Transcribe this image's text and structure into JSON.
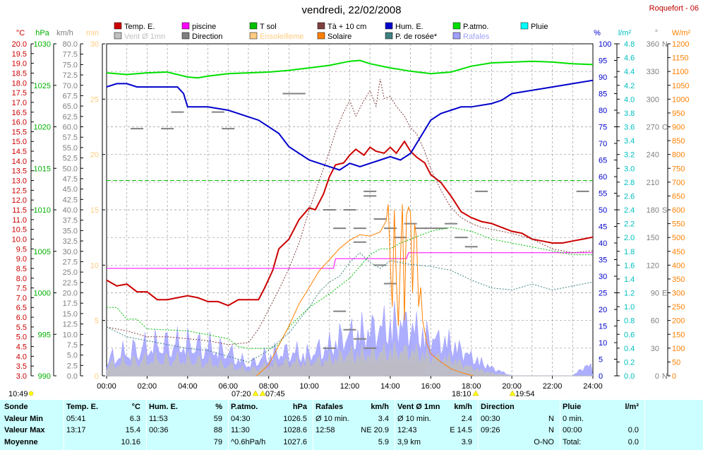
{
  "title": "vendredi, 22/02/2008",
  "station": "Roquefort - 06",
  "legend": [
    {
      "label": "Temp. E.",
      "color": "#cc0000",
      "swatch": "fill",
      "col": 0,
      "row": 0
    },
    {
      "label": "Vent Ø 1mn",
      "color": "#c0c0c0",
      "swatch": "fill",
      "col": 0,
      "row": 1
    },
    {
      "label": "piscine",
      "color": "#ff00ff",
      "swatch": "fill",
      "col": 1,
      "row": 0
    },
    {
      "label": "Direction",
      "color": "#808080",
      "swatch": "fill",
      "col": 1,
      "row": 1
    },
    {
      "label": "T sol",
      "color": "#00c000",
      "swatch": "fill",
      "col": 2,
      "row": 0
    },
    {
      "label": "Ensoleilleme",
      "color": "#ffcc80",
      "swatch": "fill",
      "col": 2,
      "row": 1
    },
    {
      "label": "Tà + 10 cm",
      "color": "#804040",
      "swatch": "fill",
      "col": 3,
      "row": 0
    },
    {
      "label": "Solaire",
      "color": "#ff8000",
      "swatch": "fill",
      "col": 3,
      "row": 1
    },
    {
      "label": "Hum. E.",
      "color": "#0000cc",
      "swatch": "fill",
      "col": 4,
      "row": 0
    },
    {
      "label": "P. de rosée*",
      "color": "#408080",
      "swatch": "fill",
      "col": 4,
      "row": 1
    },
    {
      "label": "P.atmo.",
      "color": "#00e000",
      "swatch": "fill",
      "col": 5,
      "row": 0
    },
    {
      "label": "Rafales",
      "color": "#a0a0ff",
      "swatch": "fill",
      "col": 5,
      "row": 1
    },
    {
      "label": "Pluie",
      "color": "#00ffff",
      "swatch": "fill",
      "col": 6,
      "row": 0
    }
  ],
  "axes": {
    "temp": {
      "unit": "°C",
      "color": "#cc0000",
      "min": 3.0,
      "max": 20.0,
      "step": 0.5,
      "labelEvery": 2,
      "decimals": 1
    },
    "press": {
      "unit": "hPa",
      "color": "#00b000",
      "min": 990,
      "max": 1030,
      "step": 5,
      "decimals": 0
    },
    "wind": {
      "unit": "km/h",
      "color": "#808080",
      "min": 0.0,
      "max": 80.0,
      "step": 2.5,
      "decimals": 1
    },
    "minutes": {
      "unit": "min",
      "color": "#ffcc80",
      "min": 0,
      "max": 30,
      "step": 5,
      "decimals": 0
    },
    "hum": {
      "unit": "%",
      "color": "#0000cc",
      "min": 0,
      "max": 100,
      "step": 5,
      "decimals": 0
    },
    "rain": {
      "unit": "l/m²",
      "color": "#00c0c0",
      "min": 0.0,
      "max": 4.8,
      "step": 0.2,
      "decimals": 1
    },
    "dir": {
      "unit": "°",
      "color": "#808080",
      "ticks": [
        {
          "v": 0,
          "t": "0"
        },
        {
          "v": 30,
          "t": "30"
        },
        {
          "v": 60,
          "t": "60"
        },
        {
          "v": 90,
          "t": "90"
        },
        {
          "v": 120,
          "t": "120"
        },
        {
          "v": 150,
          "t": "150"
        },
        {
          "v": 180,
          "t": "180"
        },
        {
          "v": 210,
          "t": "210"
        },
        {
          "v": 240,
          "t": "240"
        },
        {
          "v": 270,
          "t": "270"
        },
        {
          "v": 300,
          "t": "300"
        },
        {
          "v": 330,
          "t": "330"
        },
        {
          "v": 360,
          "t": "360"
        }
      ],
      "letters": [
        {
          "v": 0,
          "t": "N"
        },
        {
          "v": 90,
          "t": "E"
        },
        {
          "v": 180,
          "t": "S"
        },
        {
          "v": 270,
          "t": "O"
        },
        {
          "v": 360,
          "t": "N"
        }
      ],
      "min": 0,
      "max": 360
    },
    "solar": {
      "unit": "W/m²",
      "color": "#ff8000",
      "min": 0,
      "max": 1200,
      "step": 50,
      "decimals": 0
    },
    "xticks": [
      "00:00",
      "02:00",
      "04:00",
      "06:00",
      "08:00",
      "10:00",
      "12:00",
      "14:00",
      "16:00",
      "18:00",
      "20:00",
      "22:00",
      "24:00"
    ]
  },
  "sun": {
    "moonrise": "10:49",
    "sunrise": "07:20",
    "sunrise2": "07:45",
    "sunset": "18:10",
    "sunset2": "19:54"
  },
  "chart_data": {
    "type": "line",
    "x_unit": "hours",
    "series": [
      {
        "name": "Temp. E.",
        "axis": "temp",
        "color": "#cc0000",
        "width": 2,
        "x": [
          0,
          0.5,
          1,
          1.5,
          2,
          2.5,
          3,
          3.5,
          4,
          4.5,
          5,
          5.5,
          6,
          6.5,
          7,
          7.5,
          7.8,
          8.2,
          8.5,
          9,
          9.5,
          10,
          10.3,
          10.7,
          11,
          11.3,
          11.7,
          12,
          12.3,
          12.7,
          13,
          13.3,
          13.7,
          14,
          14.3,
          14.7,
          15,
          15.3,
          15.7,
          16,
          16.5,
          17,
          17.5,
          18,
          18.5,
          19,
          19.5,
          20,
          20.5,
          21,
          21.5,
          22,
          22.5,
          23,
          23.5,
          24
        ],
        "y": [
          7.9,
          7.6,
          7.7,
          7.3,
          7.3,
          6.9,
          6.9,
          7.0,
          7.1,
          7.0,
          6.8,
          6.8,
          6.6,
          6.9,
          6.9,
          6.9,
          7.5,
          8.4,
          9.5,
          10.0,
          11.0,
          11.6,
          11.5,
          12.3,
          13.2,
          13.8,
          13.9,
          14.3,
          14.6,
          14.3,
          14.7,
          14.5,
          14.4,
          14.7,
          14.4,
          15.0,
          14.5,
          14.2,
          13.9,
          13.3,
          12.9,
          12.2,
          11.4,
          11.1,
          10.9,
          10.8,
          10.6,
          10.4,
          10.3,
          10.0,
          9.9,
          9.8,
          9.8,
          9.9,
          10.0,
          10.1
        ]
      },
      {
        "name": "piscine",
        "axis": "temp",
        "color": "#ff00ff",
        "width": 1,
        "x": [
          0,
          11.2,
          11.3,
          14.8,
          14.9,
          24
        ],
        "y": [
          8.5,
          8.5,
          9.0,
          9.0,
          9.3,
          9.3
        ]
      },
      {
        "name": "T sol",
        "axis": "temp",
        "color": "#00c000",
        "width": 1,
        "dash": "2,2",
        "x": [
          0,
          0.5,
          1,
          1.5,
          2,
          4,
          5,
          6,
          6.5,
          7,
          8,
          8.5,
          9,
          10,
          11,
          11.5,
          12,
          12.5,
          13,
          13.5,
          14,
          14.5,
          15,
          15.5,
          16,
          16.5,
          17,
          17.5,
          18,
          18.5,
          19,
          20,
          21,
          22,
          23,
          24
        ],
        "y": [
          6.5,
          6.5,
          5.9,
          5.9,
          5.4,
          5.3,
          5.1,
          4.9,
          4.5,
          4.4,
          4.4,
          4.6,
          5.5,
          6.5,
          7.2,
          7.6,
          8.0,
          8.6,
          9.2,
          9.5,
          9.5,
          9.8,
          10.0,
          10.2,
          10.4,
          10.5,
          10.6,
          10.5,
          10.4,
          10.2,
          10.0,
          9.8,
          9.6,
          9.4,
          9.2,
          9.2
        ]
      },
      {
        "name": "Tà + 10 cm",
        "axis": "temp",
        "color": "#804040",
        "width": 1,
        "dash": "2,2",
        "x": [
          0,
          1,
          2,
          3,
          4,
          5,
          6,
          7,
          7.5,
          8,
          8.5,
          9,
          9.5,
          10,
          10.5,
          11,
          11.3,
          11.7,
          12,
          12.3,
          12.7,
          13,
          13.3,
          13.5,
          13.7,
          14,
          14.3,
          14.7,
          15,
          15.3,
          15.7,
          16,
          16.5,
          17,
          17.5,
          18,
          18.5,
          19,
          20,
          21,
          22,
          23,
          24
        ],
        "y": [
          5.5,
          5.3,
          5.0,
          5.0,
          4.9,
          4.8,
          4.6,
          4.7,
          5.4,
          6.4,
          7.4,
          8.5,
          9.8,
          11.5,
          13.0,
          14.5,
          15.5,
          16.5,
          17.1,
          16.3,
          17.1,
          17.6,
          16.8,
          18.2,
          17.2,
          17.3,
          16.8,
          16.3,
          15.7,
          15.4,
          14.5,
          13.6,
          12.5,
          11.6,
          11.1,
          10.8,
          10.6,
          10.5,
          10.3,
          10.0,
          9.5,
          9.3,
          9.4
        ]
      },
      {
        "name": "P.atmo.",
        "axis": "press",
        "color": "#00e000",
        "width": 2,
        "x": [
          0,
          1,
          2,
          3,
          4,
          4.5,
          5,
          6,
          7,
          8,
          9,
          10,
          11,
          12,
          12.5,
          13,
          14,
          15,
          16,
          17,
          18,
          19,
          20,
          21,
          22,
          23,
          24
        ],
        "y": [
          1026.5,
          1026.3,
          1026.5,
          1026.6,
          1026.0,
          1025.9,
          1026.1,
          1026.4,
          1026.5,
          1026.6,
          1026.8,
          1027.1,
          1027.4,
          1027.9,
          1028.0,
          1027.6,
          1027.1,
          1026.7,
          1026.4,
          1026.6,
          1027.3,
          1027.7,
          1027.8,
          1027.9,
          1027.8,
          1027.6,
          1027.5
        ]
      },
      {
        "name": "Hum. E.",
        "axis": "hum",
        "color": "#0000cc",
        "width": 2,
        "x": [
          0,
          0.5,
          1,
          1.5,
          2,
          2.5,
          3,
          3.5,
          3.8,
          4,
          5,
          6,
          6.5,
          7,
          7.5,
          8,
          8.5,
          9,
          9.5,
          10,
          10.5,
          11,
          11.5,
          12,
          12.5,
          13,
          13.5,
          14,
          14.5,
          15,
          15.5,
          16,
          16.5,
          17,
          17.5,
          18,
          19,
          19.5,
          20,
          21,
          22,
          23,
          24
        ],
        "y": [
          87,
          88,
          88,
          87,
          87,
          87,
          87,
          87,
          85,
          81,
          81,
          80,
          79,
          78,
          77,
          75,
          73,
          69,
          67,
          65,
          64,
          63,
          62,
          64,
          63,
          64,
          65,
          66,
          65,
          67,
          72,
          77,
          79,
          80,
          81,
          81,
          82,
          83,
          85,
          86,
          87,
          88,
          89
        ]
      },
      {
        "name": "Solaire",
        "axis": "solar",
        "color": "#ff8000",
        "width": 1,
        "x": [
          7.4,
          8,
          8.5,
          9,
          9.5,
          10,
          10.5,
          11,
          11.5,
          12,
          12.5,
          13,
          13.5,
          13.8,
          13.9,
          14,
          14.1,
          14.2,
          14.3,
          14.4,
          14.5,
          14.6,
          14.7,
          14.8,
          14.9,
          15,
          15.1,
          15.2,
          15.3,
          15.4,
          15.5,
          15.6,
          15.8,
          16,
          16.5,
          17,
          17.5,
          18.1
        ],
        "y": [
          0,
          40,
          110,
          180,
          260,
          320,
          380,
          420,
          460,
          490,
          510,
          505,
          520,
          560,
          620,
          410,
          250,
          600,
          350,
          180,
          420,
          620,
          200,
          580,
          610,
          590,
          300,
          550,
          500,
          250,
          320,
          200,
          120,
          80,
          50,
          25,
          12,
          0
        ]
      },
      {
        "name": "P. de rosée*",
        "axis": "temp",
        "color": "#408080",
        "width": 1,
        "dash": "2,2",
        "x": [
          0,
          1,
          2,
          3,
          4,
          5,
          6,
          7,
          8,
          9,
          10,
          10.5,
          11,
          11.5,
          12,
          12.5,
          13,
          13.5,
          14,
          15,
          16,
          17,
          18,
          19,
          20,
          21,
          22,
          23,
          24
        ],
        "y": [
          5.5,
          5.0,
          4.8,
          4.6,
          4.4,
          4.3,
          4.0,
          3.7,
          4.3,
          5.2,
          6.5,
          7.3,
          7.8,
          8.1,
          8.8,
          9.3,
          8.8,
          8.5,
          8.9,
          8.7,
          8.6,
          8.4,
          7.9,
          7.5,
          7.4,
          7.7,
          7.4,
          7.6,
          7.8
        ]
      }
    ],
    "ensoleillement": {
      "axis": "minutes",
      "color": "#ffcc80",
      "x0": 8.0,
      "x1": 15.8,
      "value": 1
    },
    "rafales_envelope": {
      "axis": "wind",
      "color": "#a0a0ff",
      "x": [
        0,
        1,
        2,
        3,
        4,
        5,
        6,
        7,
        8,
        9,
        10,
        10.5,
        11,
        11.5,
        12,
        12.5,
        13,
        13.5,
        14,
        14.5,
        15,
        15.5,
        16,
        17,
        18,
        19,
        20,
        21,
        22,
        23,
        23.5,
        24
      ],
      "y": [
        6,
        9,
        11,
        12,
        12,
        11,
        9,
        4,
        8,
        9,
        8,
        10,
        11,
        14,
        15,
        16,
        17,
        18,
        19,
        20,
        18,
        16,
        14,
        12,
        7,
        3,
        0,
        0,
        0,
        0,
        3,
        4
      ]
    },
    "vent_envelope": {
      "axis": "wind",
      "color": "#c0c0c0",
      "x": [
        0,
        1,
        2,
        3,
        4,
        5,
        6,
        7,
        8,
        9,
        10,
        11,
        12,
        13,
        14,
        15,
        16,
        17,
        18,
        19,
        20,
        24
      ],
      "y": [
        4,
        5,
        6,
        6,
        6,
        5,
        4,
        2,
        4,
        5,
        5,
        6,
        8,
        8,
        9,
        9,
        7,
        6,
        3,
        1,
        0,
        0
      ]
    },
    "direction_marks": {
      "axis": "dir",
      "color": "#808080",
      "points": [
        {
          "x": 1.5,
          "y": 268
        },
        {
          "x": 3.0,
          "y": 268
        },
        {
          "x": 6.0,
          "y": 268
        },
        {
          "x": 3.5,
          "y": 286
        },
        {
          "x": 5.5,
          "y": 286
        },
        {
          "x": 9.0,
          "y": 306
        },
        {
          "x": 9.5,
          "y": 306
        },
        {
          "x": 11.0,
          "y": 180
        },
        {
          "x": 11.5,
          "y": 160
        },
        {
          "x": 12.0,
          "y": 180
        },
        {
          "x": 12.5,
          "y": 160
        },
        {
          "x": 13.0,
          "y": 200
        },
        {
          "x": 13.5,
          "y": 170
        },
        {
          "x": 14.0,
          "y": 160
        },
        {
          "x": 14.5,
          "y": 150
        },
        {
          "x": 15.0,
          "y": 165
        },
        {
          "x": 15.5,
          "y": 160
        },
        {
          "x": 16.0,
          "y": 160
        },
        {
          "x": 16.5,
          "y": 160
        },
        {
          "x": 17.0,
          "y": 165
        },
        {
          "x": 17.5,
          "y": 150
        },
        {
          "x": 18.0,
          "y": 140
        },
        {
          "x": 12.5,
          "y": 145
        },
        {
          "x": 13.5,
          "y": 120
        },
        {
          "x": 14.0,
          "y": 100
        },
        {
          "x": 11.5,
          "y": 70
        },
        {
          "x": 12.0,
          "y": 50
        },
        {
          "x": 12.5,
          "y": 40
        },
        {
          "x": 13.0,
          "y": 30
        },
        {
          "x": 11.0,
          "y": 30
        },
        {
          "x": 13.0,
          "y": 195
        },
        {
          "x": 18.5,
          "y": 200
        },
        {
          "x": 23.5,
          "y": 200
        }
      ]
    },
    "sat_line": {
      "axis": "temp",
      "color": "#00c000",
      "y": 13.0
    }
  },
  "stats": {
    "rows": [
      "Sonde",
      "Valeur Min",
      "Valeur Max",
      "Moyenne"
    ],
    "blocks": [
      {
        "head": "Temp. E.",
        "unit": "°C",
        "min_t": "05:41",
        "min_v": "6.3",
        "max_t": "13:17",
        "max_v": "15.4",
        "avg_l": "",
        "avg_v": "10.16"
      },
      {
        "head": "Hum. E.",
        "unit": "%",
        "min_t": "11:53",
        "min_v": "59",
        "max_t": "00:36",
        "max_v": "88",
        "avg_l": "",
        "avg_v": "79"
      },
      {
        "head": "P.atmo.",
        "unit": "hPa",
        "min_t": "04:30",
        "min_v": "1026.5",
        "max_t": "11:30",
        "max_v": "1028.6",
        "avg_l": "^0.6hPa/h",
        "avg_v": "1027.6"
      },
      {
        "head": "Rafales",
        "unit": "km/h",
        "min_t": "Ø 10 min.",
        "min_v": "3.4",
        "max_t": "12:58",
        "max_v": "NE 20.9",
        "avg_l": "",
        "avg_v": "5.9"
      },
      {
        "head": "Vent Ø 1mn",
        "unit": "km/h",
        "min_t": "Ø 10 min.",
        "min_v": "2.4",
        "max_t": "12:43",
        "max_v": "E 14.5",
        "avg_l": "3,9 km",
        "avg_v": "3.9"
      },
      {
        "head": "Direction",
        "unit": "",
        "min_t": "00:30",
        "min_v": "N",
        "max_t": "09:26",
        "max_v": "N",
        "avg_l": "",
        "avg_v": "O-NO"
      },
      {
        "head": "Pluie",
        "unit": "l/m²",
        "min_t": "0 min.",
        "min_v": "",
        "max_t": "00:00",
        "max_v": "0.0",
        "avg_l": "Total:",
        "avg_v": "0.0"
      }
    ]
  }
}
